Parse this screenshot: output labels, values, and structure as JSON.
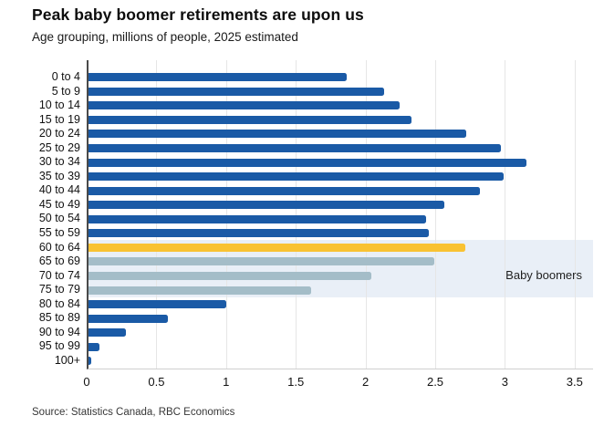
{
  "header": {
    "title": "Peak baby boomer retirements are upon us",
    "subtitle": "Age grouping, millions of people, 2025 estimated"
  },
  "footer": {
    "source": "Source: Statistics Canada, RBC Economics"
  },
  "colors": {
    "navy": "#1a5aa6",
    "yellow": "#f9c233",
    "boomer_gray": "#a4bdc8",
    "band": "#e9eff7",
    "gridline": "#e6e6e6",
    "axis": "#4a4a4a"
  },
  "chart_data": {
    "type": "bar",
    "orientation": "horizontal",
    "title": "Peak baby boomer retirements are upon us",
    "subtitle": "Age grouping, millions of people, 2025 estimated",
    "xlabel": "Millions of people",
    "ylabel": "Age grouping",
    "xlim": [
      0,
      3.5
    ],
    "xticks": [
      "0",
      "0.5",
      "1",
      "1.5",
      "2",
      "2.5",
      "3",
      "3.5"
    ],
    "grid": "vertical",
    "legend": "none",
    "categories": [
      "0 to 4",
      "5 to 9",
      "10 to 14",
      "15 to 19",
      "20 to 24",
      "25 to 29",
      "30 to 34",
      "35 to 39",
      "40 to 44",
      "45 to 49",
      "50 to 54",
      "55 to 59",
      "60 to 64",
      "65 to 69",
      "70 to 74",
      "75 to 79",
      "80 to 84",
      "85 to 89",
      "90 to 94",
      "95 to 99",
      "100+"
    ],
    "values": [
      1.85,
      2.12,
      2.23,
      2.32,
      2.71,
      2.96,
      3.14,
      2.98,
      2.81,
      2.55,
      2.42,
      2.44,
      2.7,
      2.48,
      2.03,
      1.6,
      0.99,
      0.57,
      0.27,
      0.08,
      0.02
    ],
    "bar_color_keys": [
      "navy",
      "navy",
      "navy",
      "navy",
      "navy",
      "navy",
      "navy",
      "navy",
      "navy",
      "navy",
      "navy",
      "navy",
      "yellow",
      "boomer_gray",
      "boomer_gray",
      "boomer_gray",
      "navy",
      "navy",
      "navy",
      "navy",
      "navy"
    ],
    "annotation": {
      "text": "Baby boomers",
      "band_categories": [
        "60 to 64",
        "65 to 69",
        "70 to 74",
        "75 to 79"
      ]
    }
  }
}
